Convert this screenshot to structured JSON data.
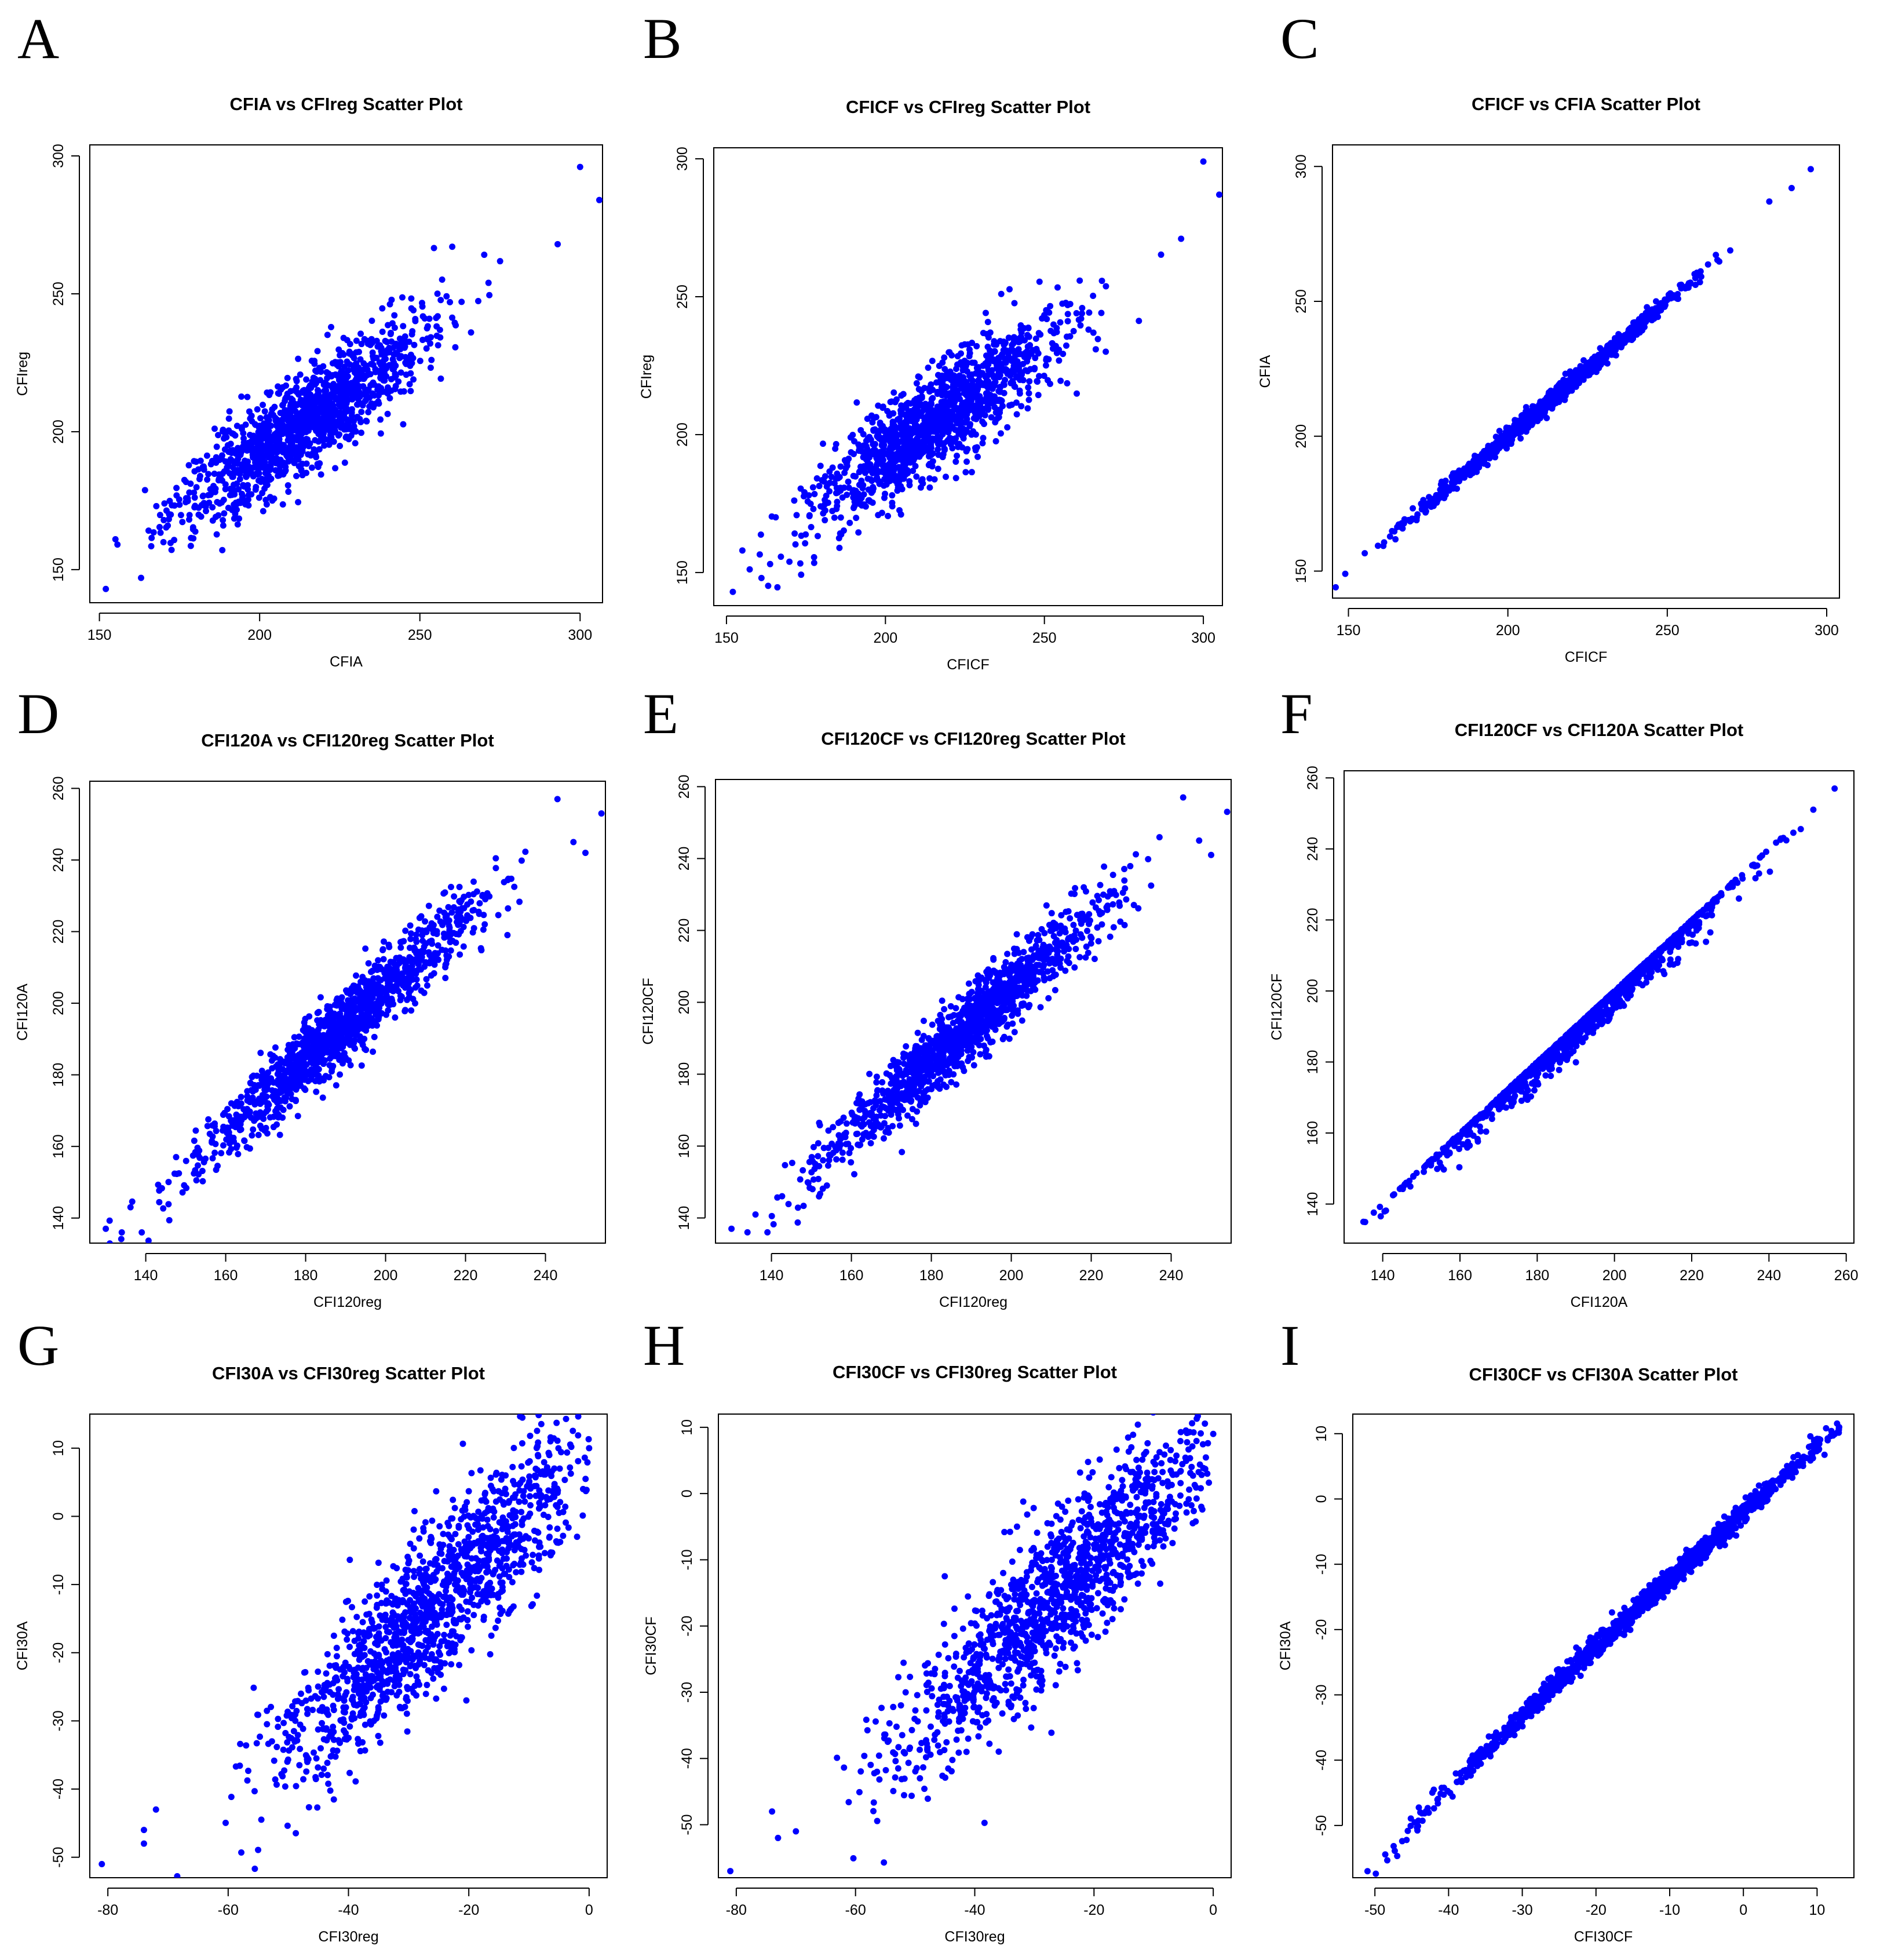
{
  "chart_data": [
    {
      "panel": "A",
      "type": "scatter",
      "title": "CFIA vs CFIreg Scatter Plot",
      "xlabel": "CFIA",
      "ylabel": "CFIreg",
      "xlim": [
        147,
        307
      ],
      "ylim": [
        138,
        304
      ],
      "xticks": [
        "150",
        "200",
        "250",
        "300"
      ],
      "yticks": [
        "150",
        "200",
        "250",
        "300"
      ],
      "relation": "diffuse",
      "slope": 0.8,
      "intercept": 32,
      "noise": 9,
      "center": 215,
      "spread": 19,
      "xmin": 153,
      "xmax": 295,
      "n": 1300,
      "seed": 11,
      "extra_points": [
        [
          152,
          143
        ],
        [
          155,
          161
        ],
        [
          163,
          147
        ],
        [
          300,
          296
        ],
        [
          306,
          284
        ],
        [
          293,
          268
        ]
      ],
      "marker_color": "#0000FF"
    },
    {
      "panel": "B",
      "type": "scatter",
      "title": "CFICF vs CFIreg Scatter Plot",
      "xlabel": "CFICF",
      "ylabel": "CFIreg",
      "xlim": [
        146,
        306
      ],
      "ylim": [
        138,
        304
      ],
      "xticks": [
        "150",
        "200",
        "250",
        "300"
      ],
      "yticks": [
        "150",
        "200",
        "250",
        "300"
      ],
      "relation": "diffuse",
      "slope": 0.8,
      "intercept": 32,
      "noise": 9,
      "center": 215,
      "spread": 19,
      "xmin": 153,
      "xmax": 294,
      "n": 1300,
      "seed": 23,
      "extra_points": [
        [
          152,
          143
        ],
        [
          155,
          158
        ],
        [
          161,
          148
        ],
        [
          300,
          299
        ],
        [
          305,
          287
        ],
        [
          293,
          271
        ]
      ],
      "marker_color": "#0000FF"
    },
    {
      "panel": "C",
      "type": "scatter",
      "title": "CFICF vs CFIA Scatter Plot",
      "xlabel": "CFICF",
      "ylabel": "CFIA",
      "xlim": [
        145,
        304
      ],
      "ylim": [
        140,
        308
      ],
      "xticks": [
        "150",
        "200",
        "250",
        "300"
      ],
      "yticks": [
        "150",
        "200",
        "250",
        "300"
      ],
      "relation": "tight",
      "slope": 1.0,
      "intercept": 0,
      "noise": 1.5,
      "center": 213,
      "spread": 20,
      "xmin": 147,
      "xmax": 270,
      "n": 1300,
      "seed": 37,
      "extra_points": [
        [
          146,
          144
        ],
        [
          149,
          149
        ],
        [
          282,
          287
        ],
        [
          289,
          292
        ],
        [
          295,
          299
        ]
      ],
      "marker_color": "#0000FF"
    },
    {
      "panel": "D",
      "type": "scatter",
      "title": "CFI120A vs CFI120reg Scatter Plot",
      "xlabel": "CFI120reg",
      "ylabel": "CFI120A",
      "xlim": [
        126,
        255
      ],
      "ylim": [
        133,
        262
      ],
      "xticks": [
        "140",
        "160",
        "180",
        "200",
        "220",
        "240"
      ],
      "yticks": [
        "140",
        "160",
        "180",
        "200",
        "220",
        "240",
        "260"
      ],
      "relation": "diffuse",
      "slope": 1.0,
      "intercept": 4,
      "noise": 5,
      "center": 189,
      "spread": 17,
      "xmin": 130,
      "xmax": 238,
      "n": 1300,
      "seed": 53,
      "extra_points": [
        [
          130,
          137
        ],
        [
          134,
          136
        ],
        [
          139,
          136
        ],
        [
          243,
          257
        ],
        [
          247,
          245
        ],
        [
          254,
          253
        ],
        [
          250,
          242
        ]
      ],
      "marker_color": "#0000FF"
    },
    {
      "panel": "E",
      "type": "scatter",
      "title": "CFI120CF vs CFI120reg Scatter Plot",
      "xlabel": "CFI120reg",
      "ylabel": "CFI120CF",
      "xlim": [
        126,
        255
      ],
      "ylim": [
        133,
        262
      ],
      "xticks": [
        "140",
        "160",
        "180",
        "200",
        "220",
        "240"
      ],
      "yticks": [
        "140",
        "160",
        "180",
        "200",
        "220",
        "240",
        "260"
      ],
      "relation": "diffuse",
      "slope": 1.0,
      "intercept": 4,
      "noise": 5,
      "center": 189,
      "spread": 17,
      "xmin": 130,
      "xmax": 238,
      "n": 1300,
      "seed": 67,
      "extra_points": [
        [
          130,
          137
        ],
        [
          134,
          136
        ],
        [
          139,
          136
        ],
        [
          243,
          257
        ],
        [
          247,
          245
        ],
        [
          254,
          253
        ],
        [
          250,
          241
        ]
      ],
      "marker_color": "#0000FF"
    },
    {
      "panel": "F",
      "type": "scatter",
      "title": "CFI120CF vs CFI120A Scatter Plot",
      "xlabel": "CFI120A",
      "ylabel": "CFI120CF",
      "xlim": [
        130,
        262
      ],
      "ylim": [
        129,
        262
      ],
      "xticks": [
        "140",
        "160",
        "180",
        "200",
        "220",
        "240",
        "260"
      ],
      "yticks": [
        "140",
        "160",
        "180",
        "200",
        "220",
        "240",
        "260"
      ],
      "relation": "upper-envelope",
      "slope": 1.0,
      "intercept": 0,
      "noise": 3.5,
      "center": 192,
      "spread": 20,
      "xmin": 135,
      "xmax": 257,
      "n": 1300,
      "seed": 79,
      "extra_points": [
        [
          135,
          135
        ],
        [
          257,
          257
        ]
      ],
      "marker_color": "#0000FF"
    },
    {
      "panel": "G",
      "type": "scatter",
      "title": "CFI30A vs CFI30reg Scatter Plot",
      "xlabel": "CFI30reg",
      "ylabel": "CFI30A",
      "xlim": [
        -83,
        3
      ],
      "ylim": [
        -53,
        15
      ],
      "xticks": [
        "-80",
        "-60",
        "-40",
        "-20",
        "0"
      ],
      "yticks": [
        "-50",
        "-40",
        "-30",
        "-20",
        "-10",
        "0",
        "10"
      ],
      "relation": "diffuse",
      "slope": 0.85,
      "intercept": 9,
      "noise": 6,
      "center": -26,
      "spread": 13,
      "xmin": -81,
      "xmax": 0,
      "n": 1300,
      "seed": 97,
      "extra_points": [
        [
          -81,
          -51
        ],
        [
          -74,
          -46
        ],
        [
          -74,
          -48
        ],
        [
          -72,
          -43
        ],
        [
          0,
          10
        ],
        [
          -1,
          4
        ],
        [
          -2,
          -3
        ]
      ],
      "marker_color": "#0000FF"
    },
    {
      "panel": "H",
      "type": "scatter",
      "title": "CFI30CF vs CFI30reg Scatter Plot",
      "xlabel": "CFI30reg",
      "ylabel": "CFI30CF",
      "xlim": [
        -83,
        3
      ],
      "ylim": [
        -58,
        12
      ],
      "xticks": [
        "-80",
        "-60",
        "-40",
        "-20",
        "0"
      ],
      "yticks": [
        "-50",
        "-40",
        "-30",
        "-20",
        "-10",
        "0",
        "10"
      ],
      "relation": "diffuse",
      "slope": 0.85,
      "intercept": 7,
      "noise": 6,
      "center": -26,
      "spread": 13,
      "xmin": -81,
      "xmax": 0,
      "n": 1300,
      "seed": 113,
      "extra_points": [
        [
          -81,
          -57
        ],
        [
          -74,
          -48
        ],
        [
          -73,
          -52
        ],
        [
          -70,
          -51
        ],
        [
          0,
          9
        ],
        [
          -1,
          3
        ],
        [
          -2,
          -2
        ]
      ],
      "marker_color": "#0000FF"
    },
    {
      "panel": "I",
      "type": "scatter",
      "title": "CFI30CF vs CFI30A Scatter Plot",
      "xlabel": "CFI30CF",
      "ylabel": "CFI30A",
      "xlim": [
        -53,
        15
      ],
      "ylim": [
        -58,
        13
      ],
      "xticks": [
        "-50",
        "-40",
        "-30",
        "-20",
        "-10",
        "0",
        "10"
      ],
      "yticks": [
        "-50",
        "-40",
        "-30",
        "-20",
        "-10",
        "0",
        "10"
      ],
      "relation": "tight-curve",
      "slope": 1.12,
      "intercept": 0,
      "noise": 0.8,
      "center": -14,
      "spread": 14,
      "xmin": -50,
      "xmax": 13,
      "n": 1300,
      "seed": 131,
      "extra_points": [
        [
          -51,
          -57
        ],
        [
          13,
          11
        ]
      ],
      "marker_color": "#0000FF"
    }
  ]
}
